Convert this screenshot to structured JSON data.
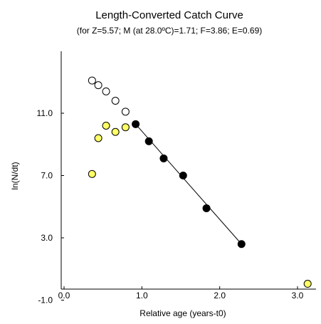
{
  "chart_data": {
    "type": "scatter",
    "title": "Length-Converted Catch Curve",
    "subtitle": "(for Z=5.57; M (at 28.0ºC)=1.71; F=3.86; E=0.69)",
    "xlabel": "Relative age (years-t0)",
    "ylabel": "ln(N/dt)",
    "xlim": [
      0.0,
      3.3
    ],
    "ylim": [
      -1.0,
      15.0
    ],
    "x_ticks": [
      {
        "value": 0.0,
        "label": "0.0"
      },
      {
        "value": 1.0,
        "label": "1.0"
      },
      {
        "value": 2.0,
        "label": "2.0"
      },
      {
        "value": 3.0,
        "label": "3.0"
      }
    ],
    "y_ticks": [
      {
        "value": -1.0,
        "label": "-1.0"
      },
      {
        "value": 3.0,
        "label": "3.0"
      },
      {
        "value": 7.0,
        "label": "7.0"
      },
      {
        "value": 11.0,
        "label": "11.0"
      }
    ],
    "series": [
      {
        "kind": "open",
        "marker_fill": "#ffffff",
        "marker_stroke": "#000000",
        "points": [
          {
            "x": 0.36,
            "y": 13.1
          },
          {
            "x": 0.44,
            "y": 12.8
          },
          {
            "x": 0.54,
            "y": 12.4
          },
          {
            "x": 0.66,
            "y": 11.8
          },
          {
            "x": 0.79,
            "y": 11.1
          }
        ]
      },
      {
        "kind": "yellow",
        "marker_fill": "#ffff66",
        "marker_stroke": "#000000",
        "points": [
          {
            "x": 0.36,
            "y": 7.1
          },
          {
            "x": 0.44,
            "y": 9.4
          },
          {
            "x": 0.54,
            "y": 10.2
          },
          {
            "x": 0.66,
            "y": 9.8
          },
          {
            "x": 0.79,
            "y": 10.1
          }
        ]
      },
      {
        "kind": "regression",
        "marker_fill": "#000000",
        "marker_stroke": "#000000",
        "points": [
          {
            "x": 0.92,
            "y": 10.3
          },
          {
            "x": 1.09,
            "y": 9.2
          },
          {
            "x": 1.28,
            "y": 8.1
          },
          {
            "x": 1.53,
            "y": 7.0
          },
          {
            "x": 1.83,
            "y": 4.9
          },
          {
            "x": 2.28,
            "y": 2.6
          }
        ]
      },
      {
        "kind": "yellow",
        "marker_fill": "#ffff66",
        "marker_stroke": "#000000",
        "points": [
          {
            "x": 3.13,
            "y": 0.05
          }
        ]
      }
    ],
    "regression_line": {
      "x_start": 0.92,
      "y_start": 10.3,
      "x_end": 2.28,
      "y_end": 2.6
    }
  }
}
